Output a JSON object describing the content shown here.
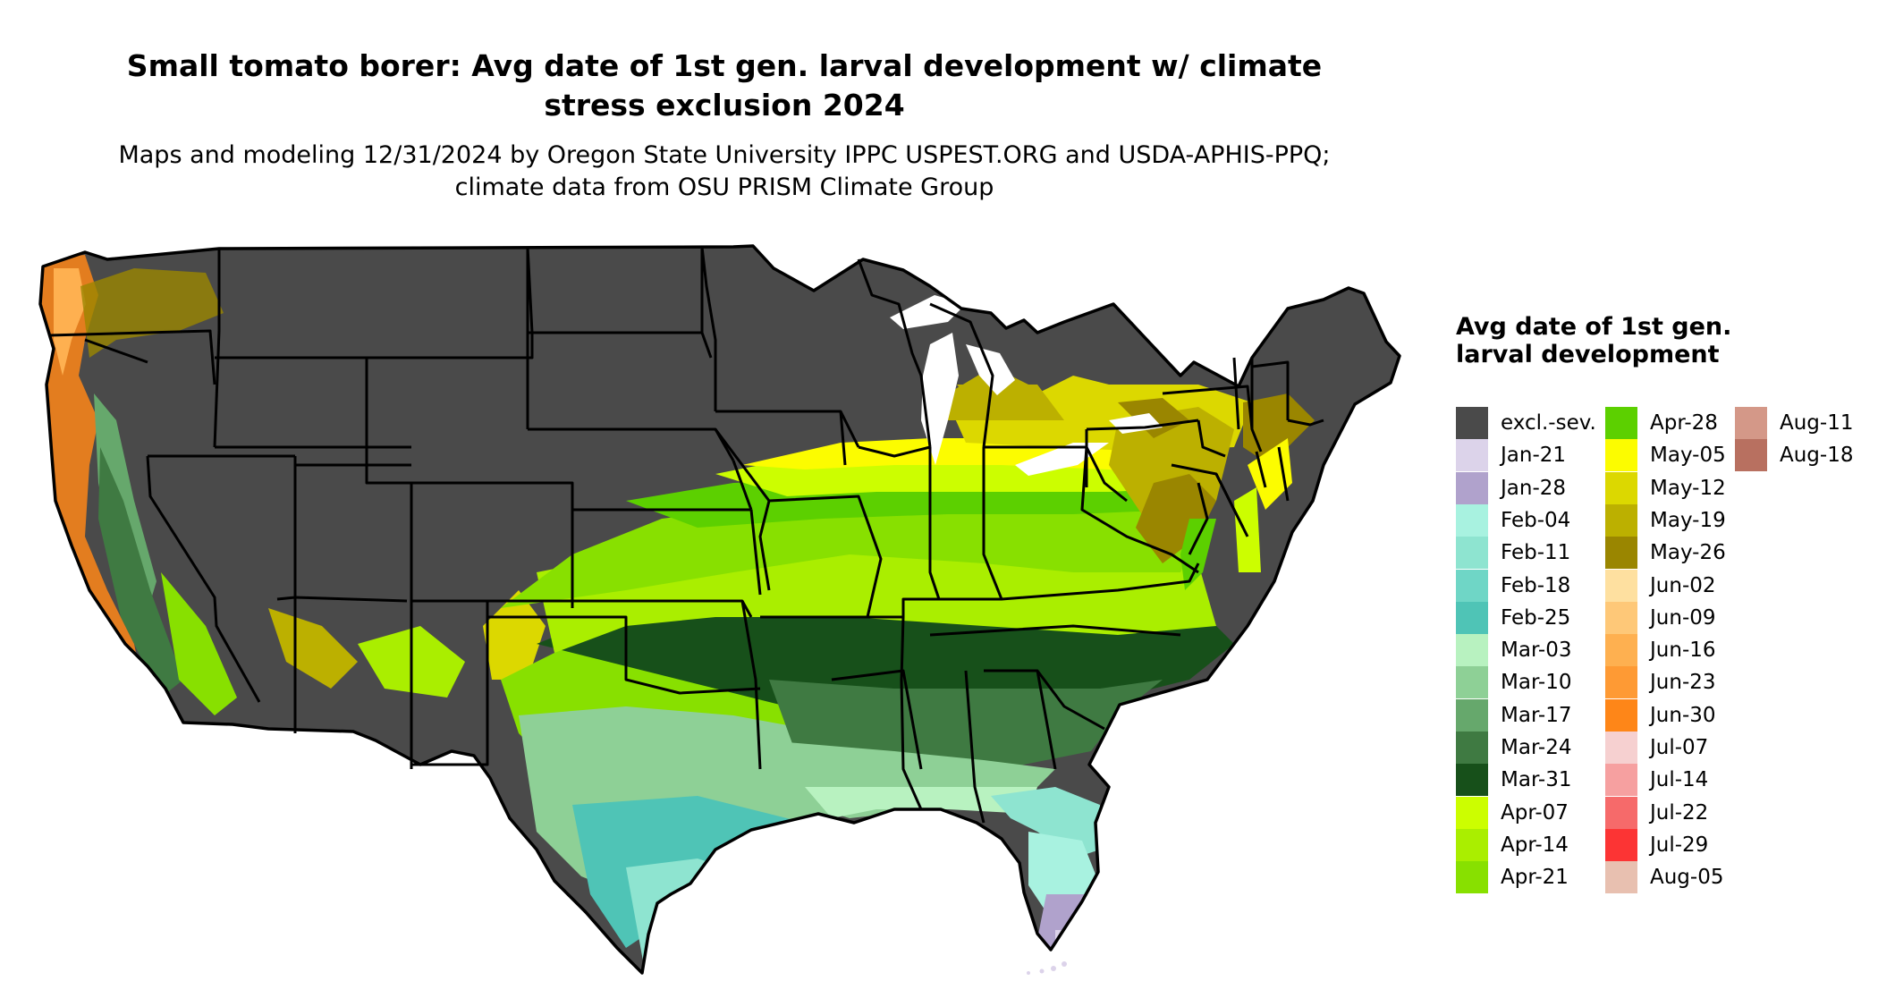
{
  "title": "Small tomato borer: Avg date of 1st gen. larval development w/ climate stress exclusion 2024",
  "subtitle": "Maps and modeling 12/31/2024 by Oregon State University IPPC USPEST.ORG and USDA-APHIS-PPQ; climate data from OSU PRISM Climate Group",
  "legend": {
    "title": "Avg date of 1st gen. larval development",
    "items": [
      {
        "label": "excl.-sev.",
        "color": "#4a4a4a"
      },
      {
        "label": "Jan-21",
        "color": "#dcd3ea"
      },
      {
        "label": "Jan-28",
        "color": "#b0a2cc"
      },
      {
        "label": "Feb-04",
        "color": "#a8f2e0"
      },
      {
        "label": "Feb-11",
        "color": "#8ee4d0"
      },
      {
        "label": "Feb-18",
        "color": "#6fd6c6"
      },
      {
        "label": "Feb-25",
        "color": "#4fc4b6"
      },
      {
        "label": "Mar-03",
        "color": "#b8f2c0"
      },
      {
        "label": "Mar-10",
        "color": "#8ed096"
      },
      {
        "label": "Mar-17",
        "color": "#66a86c"
      },
      {
        "label": "Mar-24",
        "color": "#3f7a42"
      },
      {
        "label": "Mar-31",
        "color": "#17501a"
      },
      {
        "label": "Apr-07",
        "color": "#ccfe00"
      },
      {
        "label": "Apr-14",
        "color": "#aaee00"
      },
      {
        "label": "Apr-21",
        "color": "#88e000"
      },
      {
        "label": "Apr-28",
        "color": "#5cd000"
      },
      {
        "label": "May-05",
        "color": "#fcfc00"
      },
      {
        "label": "May-12",
        "color": "#dcd800"
      },
      {
        "label": "May-19",
        "color": "#bcb000"
      },
      {
        "label": "May-26",
        "color": "#9a8600"
      },
      {
        "label": "Jun-02",
        "color": "#fee0a0"
      },
      {
        "label": "Jun-09",
        "color": "#fec878"
      },
      {
        "label": "Jun-16",
        "color": "#feb050"
      },
      {
        "label": "Jun-23",
        "color": "#fe9a34"
      },
      {
        "label": "Jun-30",
        "color": "#fe8618"
      },
      {
        "label": "Jul-07",
        "color": "#f6d0d0"
      },
      {
        "label": "Jul-14",
        "color": "#f6a0a0"
      },
      {
        "label": "Jul-22",
        "color": "#f66a6a"
      },
      {
        "label": "Jul-29",
        "color": "#fc3434"
      },
      {
        "label": "Aug-05",
        "color": "#e8c0b0"
      },
      {
        "label": "Aug-11",
        "color": "#d49888"
      },
      {
        "label": "Aug-18",
        "color": "#b87060"
      }
    ]
  }
}
